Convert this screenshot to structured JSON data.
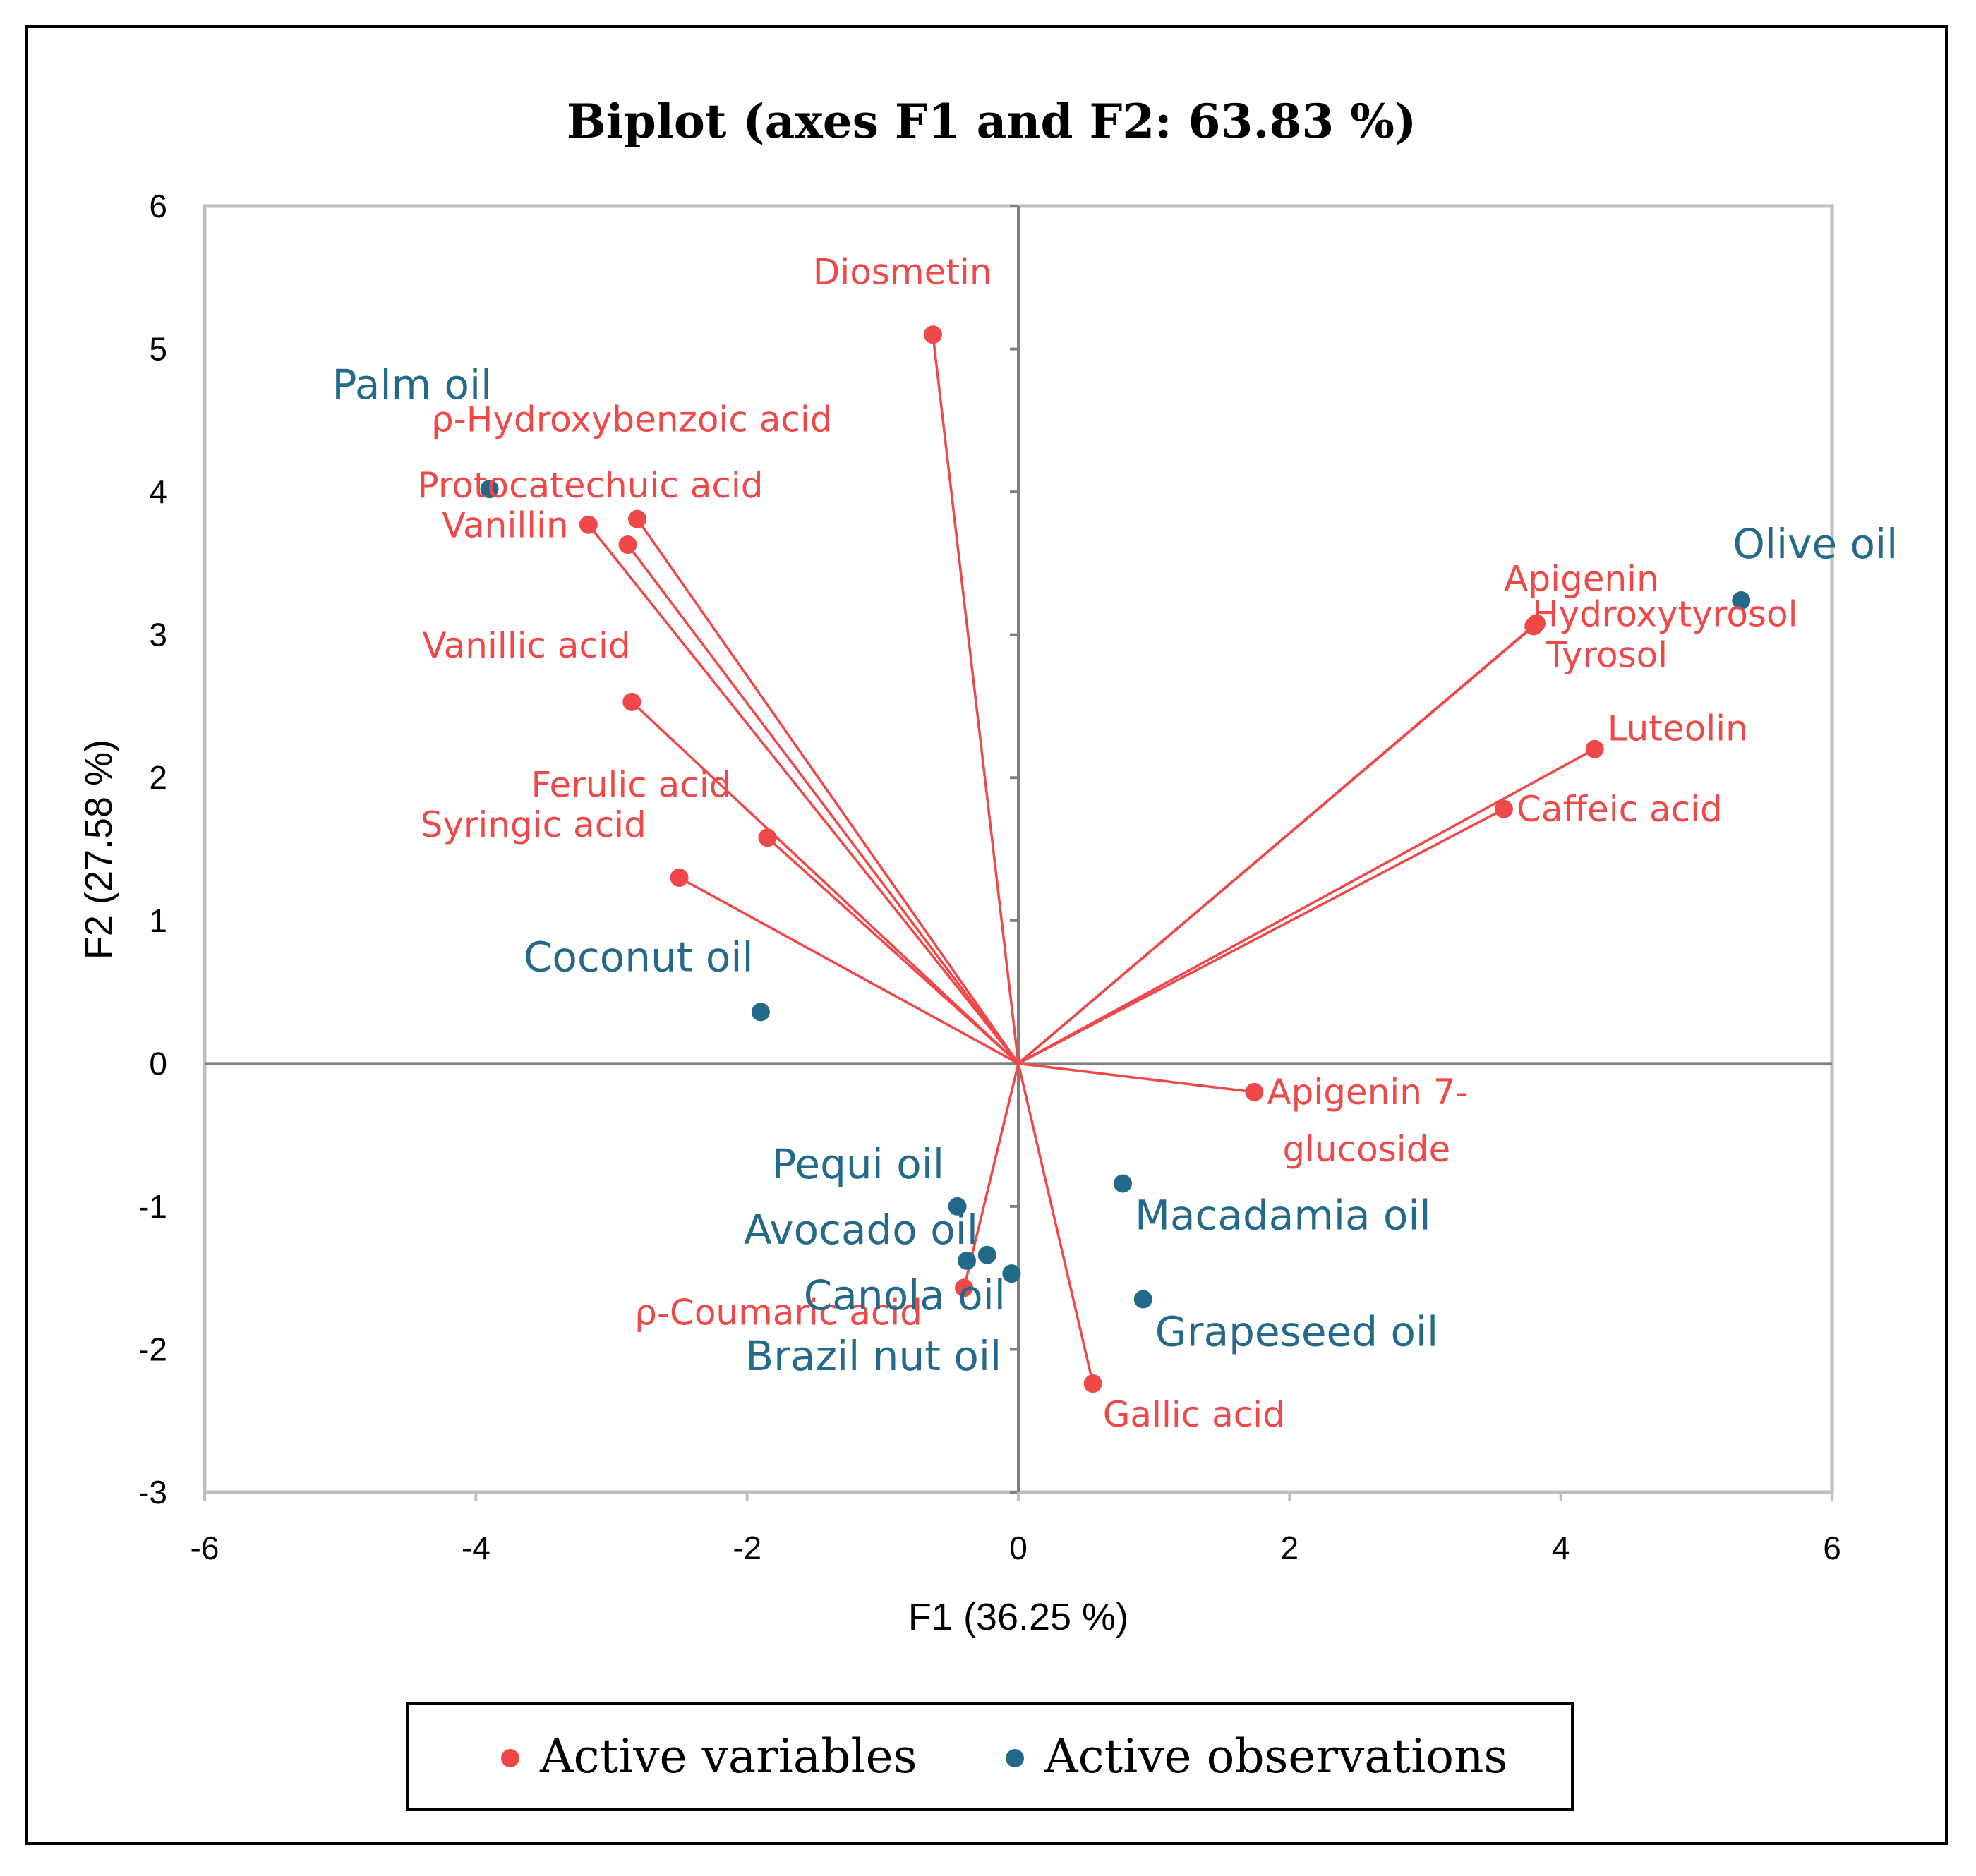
{
  "chart_data": {
    "type": "scatter",
    "title": "Biplot (axes F1 and F2: 63.83 %)",
    "xlabel": "F1 (36.25 %)",
    "ylabel": "F2 (27.58 %)",
    "xlim": [
      -6,
      6
    ],
    "ylim": [
      -3,
      6
    ],
    "xticks": [
      -6,
      -4,
      -2,
      0,
      2,
      4,
      6
    ],
    "yticks": [
      -3,
      -2,
      -1,
      0,
      1,
      2,
      3,
      4,
      5,
      6
    ],
    "grid": false,
    "legend_position": "bottom",
    "colors": {
      "variables": "#f04848",
      "observations": "#23698a"
    },
    "series": [
      {
        "name": "Active variables",
        "kind": "vectors",
        "points": [
          {
            "label": "Diosmetin",
            "x": -0.63,
            "y": 5.1
          },
          {
            "label": "ρ-Hydroxybenzoic acid",
            "x": -2.81,
            "y": 3.81
          },
          {
            "label": "Protocatechuic acid",
            "x": -2.88,
            "y": 3.63
          },
          {
            "label": "Vanillin",
            "x": -3.17,
            "y": 3.77
          },
          {
            "label": "Vanillic acid",
            "x": -2.85,
            "y": 2.53
          },
          {
            "label": "Ferulic acid",
            "x": -1.85,
            "y": 1.58
          },
          {
            "label": "Syringic acid",
            "x": -2.5,
            "y": 1.3
          },
          {
            "label": "Apigenin",
            "x": 3.81,
            "y": 3.07
          },
          {
            "label": "Hydroxytyrosol",
            "x": 3.82,
            "y": 3.08
          },
          {
            "label": "Tyrosol",
            "x": 3.8,
            "y": 3.06
          },
          {
            "label": "Luteolin",
            "x": 4.25,
            "y": 2.2
          },
          {
            "label": "Caffeic acid",
            "x": 3.58,
            "y": 1.78
          },
          {
            "label": "Apigenin 7-glucoside",
            "x": 1.74,
            "y": -0.2
          },
          {
            "label": "ρ-Coumaric acid",
            "x": -0.4,
            "y": -1.57
          },
          {
            "label": "Gallic acid",
            "x": 0.55,
            "y": -2.24
          }
        ]
      },
      {
        "name": "Active observations",
        "kind": "points",
        "points": [
          {
            "label": "Palm oil",
            "x": -3.9,
            "y": 4.02
          },
          {
            "label": "Olive oil",
            "x": 5.33,
            "y": 3.24
          },
          {
            "label": "Coconut oil",
            "x": -1.9,
            "y": 0.36
          },
          {
            "label": "Pequi oil",
            "x": -0.45,
            "y": -1.0
          },
          {
            "label": "Avocado oil",
            "x": -0.38,
            "y": -1.38
          },
          {
            "label": "Canola oil",
            "x": -0.23,
            "y": -1.34
          },
          {
            "label": "Brazil nut oil",
            "x": -0.05,
            "y": -1.47
          },
          {
            "label": "Macadamia oil",
            "x": 0.77,
            "y": -0.84
          },
          {
            "label": "Grapeseed oil",
            "x": 0.92,
            "y": -1.65
          }
        ]
      }
    ]
  }
}
